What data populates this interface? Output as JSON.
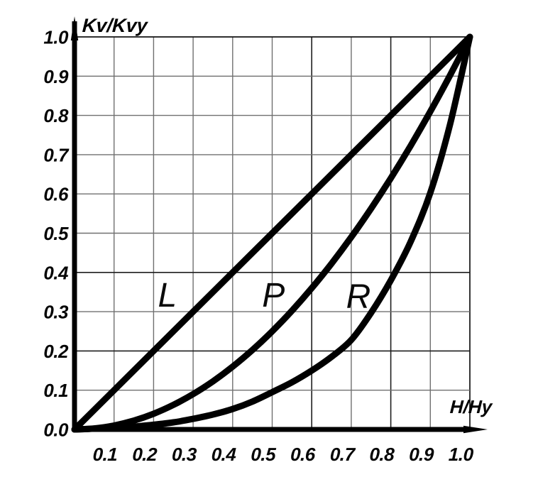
{
  "chart_data": {
    "type": "line",
    "title": "",
    "xlabel": "H/Hy",
    "ylabel": "Kv/Kvy",
    "xlim": [
      0,
      1.0
    ],
    "ylim": [
      0,
      1.0
    ],
    "grid": true,
    "legend_position": "inline-curve-labels",
    "x_ticks": [
      {
        "v": 0.1,
        "label": "0.1"
      },
      {
        "v": 0.2,
        "label": "0.2"
      },
      {
        "v": 0.3,
        "label": "0.3"
      },
      {
        "v": 0.4,
        "label": "0.4"
      },
      {
        "v": 0.5,
        "label": "0.5"
      },
      {
        "v": 0.6,
        "label": "0.6"
      },
      {
        "v": 0.7,
        "label": "0.7"
      },
      {
        "v": 0.8,
        "label": "0.8"
      },
      {
        "v": 0.9,
        "label": "0.9"
      },
      {
        "v": 1.0,
        "label": "1.0"
      }
    ],
    "y_ticks": [
      {
        "v": 0.0,
        "label": "0.0"
      },
      {
        "v": 0.1,
        "label": "0.1"
      },
      {
        "v": 0.2,
        "label": "0.2"
      },
      {
        "v": 0.3,
        "label": "0.3"
      },
      {
        "v": 0.4,
        "label": "0.4"
      },
      {
        "v": 0.5,
        "label": "0.5"
      },
      {
        "v": 0.6,
        "label": "0.6"
      },
      {
        "v": 0.7,
        "label": "0.7"
      },
      {
        "v": 0.8,
        "label": "0.8"
      },
      {
        "v": 0.9,
        "label": "0.9"
      },
      {
        "v": 1.0,
        "label": "1.0"
      }
    ],
    "grid_emphasis": {
      "horizontal": [
        0.2,
        0.4
      ],
      "vertical": [
        0.6,
        0.8
      ]
    },
    "series": [
      {
        "name": "L",
        "label": "L",
        "label_at": [
          0.235,
          0.344
        ],
        "points": [
          [
            0,
            0
          ],
          [
            1.0,
            1.0
          ]
        ]
      },
      {
        "name": "P",
        "label": "P",
        "label_at": [
          0.503,
          0.344
        ],
        "points": [
          [
            0,
            0
          ],
          [
            0.05,
            0.0025
          ],
          [
            0.1,
            0.01
          ],
          [
            0.15,
            0.0225
          ],
          [
            0.2,
            0.04
          ],
          [
            0.25,
            0.0625
          ],
          [
            0.3,
            0.09
          ],
          [
            0.35,
            0.1225
          ],
          [
            0.4,
            0.16
          ],
          [
            0.45,
            0.2025
          ],
          [
            0.5,
            0.25
          ],
          [
            0.55,
            0.3025
          ],
          [
            0.6,
            0.36
          ],
          [
            0.65,
            0.4225
          ],
          [
            0.7,
            0.49
          ],
          [
            0.75,
            0.5625
          ],
          [
            0.8,
            0.64
          ],
          [
            0.85,
            0.7225
          ],
          [
            0.9,
            0.81
          ],
          [
            0.95,
            0.9025
          ],
          [
            1.0,
            1.0
          ]
        ]
      },
      {
        "name": "R",
        "label": "R",
        "label_at": [
          0.718,
          0.34
        ],
        "points": [
          [
            0,
            0
          ],
          [
            0.05,
            0.002
          ],
          [
            0.1,
            0.004
          ],
          [
            0.15,
            0.007
          ],
          [
            0.2,
            0.012
          ],
          [
            0.25,
            0.018
          ],
          [
            0.3,
            0.027
          ],
          [
            0.35,
            0.038
          ],
          [
            0.4,
            0.052
          ],
          [
            0.45,
            0.071
          ],
          [
            0.5,
            0.095
          ],
          [
            0.55,
            0.12
          ],
          [
            0.6,
            0.15
          ],
          [
            0.65,
            0.185
          ],
          [
            0.7,
            0.228
          ],
          [
            0.75,
            0.297
          ],
          [
            0.8,
            0.38
          ],
          [
            0.85,
            0.478
          ],
          [
            0.9,
            0.603
          ],
          [
            0.95,
            0.778
          ],
          [
            1.0,
            1.0
          ]
        ]
      }
    ]
  },
  "icons": {
    "y_axis_arrow": "up-arrow-icon",
    "x_axis_arrow": "right-arrow-icon"
  },
  "colors": {
    "ink": "#000000",
    "grid": "#707070",
    "grid_dark": "#1e1e1e",
    "border": "#121212",
    "background": "#ffffff"
  }
}
